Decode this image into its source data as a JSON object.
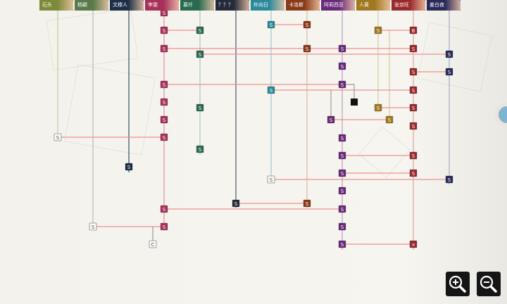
{
  "characters": [
    {
      "name": "石头",
      "color": "#7d8a3a",
      "line": "#c4c8a0"
    },
    {
      "name": "杨颖",
      "color": "#5a7a4a",
      "line": "#b8bdb0"
    },
    {
      "name": "文穆人",
      "color": "#1e2e48",
      "line": "#3a4a66"
    },
    {
      "name": "李雯",
      "color": "#a8305a",
      "line": "#d890a0"
    },
    {
      "name": "慕仟",
      "color": "#2a6a50",
      "line": "#a8c8b8"
    },
    {
      "name": "？？？",
      "color": "#252a3a",
      "line": "#50566a"
    },
    {
      "name": "朴向日",
      "color": "#2a8a9a",
      "line": "#9ccad2"
    },
    {
      "name": "卡洛斯",
      "color": "#8a3a18",
      "line": "#d8b8a0"
    },
    {
      "name": "阿莉西亚",
      "color": "#6a2a7a",
      "line": "#b8a0c0"
    },
    {
      "name": "人黄",
      "color": "#a07820",
      "line": "#d8cca0"
    },
    {
      "name": "张京旺",
      "color": "#9a2a2a",
      "line": "#e0a0a0"
    },
    {
      "name": "姜白夜",
      "color": "#2a2a5a",
      "line": "#a8a8cc"
    }
  ],
  "node_labels": {
    "story": "S",
    "bad": "B",
    "choice": "C",
    "locked": "×"
  },
  "controls": {
    "zoom_in": "zoom-in",
    "zoom_out": "zoom-out"
  },
  "colors": {
    "link": "#f09090",
    "connector": "#888888",
    "background": "#f4f2ec"
  }
}
